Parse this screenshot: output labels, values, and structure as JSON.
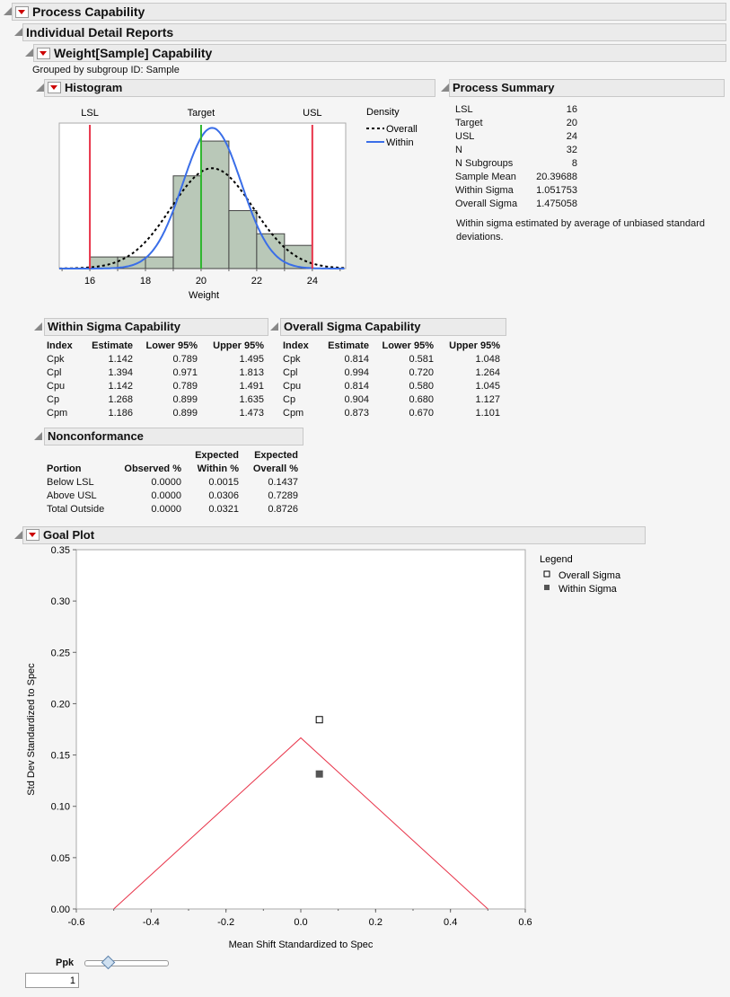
{
  "titles": {
    "process_capability": "Process Capability",
    "individual": "Individual Detail Reports",
    "weight_cap": "Weight[Sample] Capability",
    "grouped": "Grouped by subgroup ID: Sample",
    "histogram": "Histogram",
    "process_summary": "Process Summary",
    "within_sigma": "Within Sigma Capability",
    "overall_sigma": "Overall Sigma Capability",
    "nonconformance": "Nonconformance",
    "goal_plot": "Goal Plot"
  },
  "colors": {
    "spec_line": "#e8344a",
    "target_line": "#2db52d",
    "within_curve": "#3a6ee8",
    "bar_fill": "#b9c8b8"
  },
  "histogram": {
    "spec_labels": {
      "lsl": "LSL",
      "target": "Target",
      "usl": "USL"
    },
    "legend_title": "Density",
    "legend": {
      "overall": "Overall",
      "within": "Within"
    },
    "xlabel": "Weight",
    "ticks": [
      "16",
      "18",
      "20",
      "22",
      "24"
    ]
  },
  "chart_data": [
    {
      "type": "bar",
      "title": "Histogram",
      "xlabel": "Weight",
      "bins": [
        [
          16,
          17
        ],
        [
          17,
          18
        ],
        [
          18,
          19
        ],
        [
          19,
          20
        ],
        [
          20,
          21
        ],
        [
          21,
          22
        ],
        [
          22,
          23
        ],
        [
          23,
          24
        ]
      ],
      "counts": [
        1,
        1,
        1,
        8,
        11,
        5,
        3,
        2
      ],
      "xlim": [
        14.9,
        25.2
      ],
      "xticks": [
        16,
        18,
        20,
        22,
        24
      ],
      "spec": {
        "lsl": 16,
        "target": 20,
        "usl": 24
      },
      "curves": [
        {
          "name": "Overall",
          "mean": 20.39688,
          "sigma": 1.475058,
          "style": "dashed"
        },
        {
          "name": "Within",
          "mean": 20.39688,
          "sigma": 1.051753,
          "style": "solid"
        }
      ],
      "n": 32
    },
    {
      "type": "scatter",
      "title": "Goal Plot",
      "xlabel": "Mean Shift Standardized to Spec",
      "ylabel": "Std Dev Standardized to Spec",
      "xlim": [
        -0.6,
        0.6
      ],
      "ylim": [
        0,
        0.35
      ],
      "xticks": [
        "-0.6",
        "-0.4",
        "-0.2",
        "0.0",
        "0.2",
        "0.4",
        "0.6"
      ],
      "yticks": [
        "0.00",
        "0.05",
        "0.10",
        "0.15",
        "0.20",
        "0.25",
        "0.30",
        "0.35"
      ],
      "points": [
        {
          "name": "Overall Sigma",
          "x": 0.0496,
          "y": 0.1844,
          "marker": "open-square"
        },
        {
          "name": "Within Sigma",
          "x": 0.0496,
          "y": 0.1315,
          "marker": "filled-square"
        }
      ],
      "ppk_line": [
        [
          -0.5,
          0
        ],
        [
          0,
          0.1667
        ],
        [
          0.5,
          0
        ]
      ],
      "legend_title": "Legend"
    }
  ],
  "summary": [
    [
      "LSL",
      "16"
    ],
    [
      "Target",
      "20"
    ],
    [
      "USL",
      "24"
    ],
    [
      "N",
      "32"
    ],
    [
      "N Subgroups",
      "8"
    ],
    [
      "Sample Mean",
      "20.39688"
    ],
    [
      "Within Sigma",
      "1.051753"
    ],
    [
      "Overall Sigma",
      "1.475058"
    ]
  ],
  "summary_note": "Within sigma estimated by average of unbiased standard deviations.",
  "cap_headers": [
    "Index",
    "Estimate",
    "Lower 95%",
    "Upper 95%"
  ],
  "within_rows": [
    [
      "Cpk",
      "1.142",
      "0.789",
      "1.495"
    ],
    [
      "Cpl",
      "1.394",
      "0.971",
      "1.813"
    ],
    [
      "Cpu",
      "1.142",
      "0.789",
      "1.491"
    ],
    [
      "Cp",
      "1.268",
      "0.899",
      "1.635"
    ],
    [
      "Cpm",
      "1.186",
      "0.899",
      "1.473"
    ]
  ],
  "overall_rows": [
    [
      "Cpk",
      "0.814",
      "0.581",
      "1.048"
    ],
    [
      "Cpl",
      "0.994",
      "0.720",
      "1.264"
    ],
    [
      "Cpu",
      "0.814",
      "0.580",
      "1.045"
    ],
    [
      "Cp",
      "0.904",
      "0.680",
      "1.127"
    ],
    [
      "Cpm",
      "0.873",
      "0.670",
      "1.101"
    ]
  ],
  "nonconf_headers": [
    [
      "",
      ""
    ],
    [
      "",
      "Portion"
    ],
    [
      "",
      "Observed %"
    ],
    [
      "Expected",
      "Within %"
    ],
    [
      "Expected",
      "Overall %"
    ]
  ],
  "nonconf_rows": [
    [
      "Below LSL",
      "0.0000",
      "0.0015",
      "0.1437"
    ],
    [
      "Above USL",
      "0.0000",
      "0.0306",
      "0.7289"
    ],
    [
      "Total Outside",
      "0.0000",
      "0.0321",
      "0.8726"
    ]
  ],
  "goal": {
    "legend_title": "Legend",
    "legend": [
      "Overall Sigma",
      "Within Sigma"
    ],
    "xlabel": "Mean Shift Standardized to Spec",
    "ylabel": "Std Dev Standardized to Spec",
    "ppk_label": "Ppk",
    "ppk_value": "1",
    "ppk_slider": 1
  }
}
